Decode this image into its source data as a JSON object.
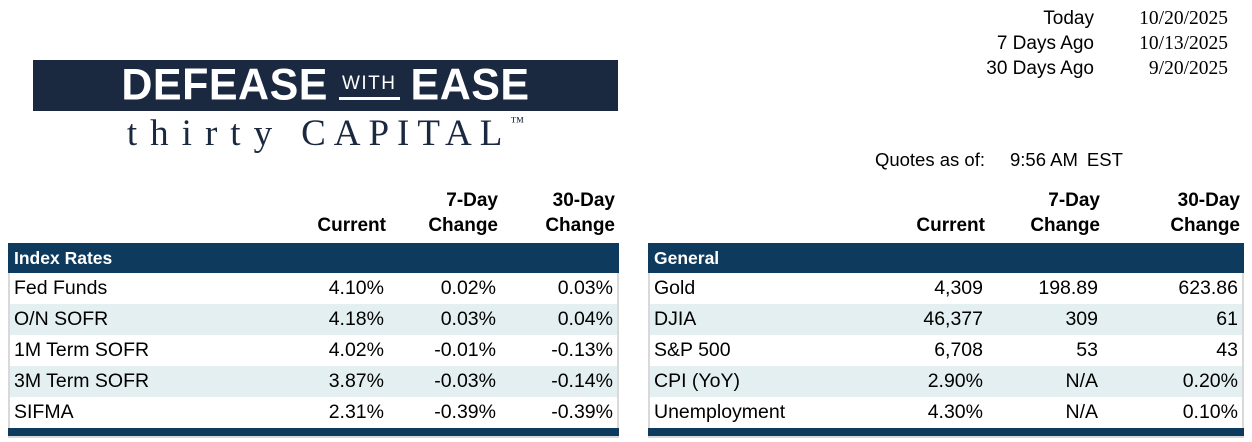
{
  "dates": {
    "rows": [
      {
        "label": "Today",
        "value": "10/20/2025"
      },
      {
        "label": "7 Days Ago",
        "value": "10/13/2025"
      },
      {
        "label": "30 Days Ago",
        "value": "9/20/2025"
      }
    ]
  },
  "logo": {
    "word1": "DEFEASE",
    "word2": "WITH",
    "word3": "EASE",
    "tagline_word1": "thirty",
    "tagline_word2": "CAPITAL",
    "trademark": "™"
  },
  "quotes": {
    "label": "Quotes as of:",
    "time": "9:56 AM",
    "timezone": "EST"
  },
  "columns": {
    "current": "Current",
    "seven_day": "7-Day",
    "thirty_day": "30-Day",
    "change": "Change"
  },
  "left_table": {
    "section": "Index Rates",
    "rows": [
      {
        "label": "Fed Funds",
        "current": "4.10%",
        "d7": "0.02%",
        "d30": "0.03%"
      },
      {
        "label": "O/N SOFR",
        "current": "4.18%",
        "d7": "0.03%",
        "d30": "0.04%"
      },
      {
        "label": "1M Term SOFR",
        "current": "4.02%",
        "d7": "-0.01%",
        "d30": "-0.13%"
      },
      {
        "label": "3M Term SOFR",
        "current": "3.87%",
        "d7": "-0.03%",
        "d30": "-0.14%"
      },
      {
        "label": "SIFMA",
        "current": "2.31%",
        "d7": "-0.39%",
        "d30": "-0.39%"
      }
    ]
  },
  "right_table": {
    "section": "General",
    "rows": [
      {
        "label": "Gold",
        "current": "4,309",
        "d7": "198.89",
        "d30": "623.86"
      },
      {
        "label": "DJIA",
        "current": "46,377",
        "d7": "309",
        "d30": "61"
      },
      {
        "label": "S&P 500",
        "current": "6,708",
        "d7": "53",
        "d30": "43"
      },
      {
        "label": "CPI (YoY)",
        "current": "2.90%",
        "d7": "N/A",
        "d30": "0.20%"
      },
      {
        "label": "Unemployment",
        "current": "4.30%",
        "d7": "N/A",
        "d30": "0.10%"
      }
    ]
  },
  "colors": {
    "logo_navy": "#1A2840",
    "bar_navy": "#0D3A5D",
    "row_band": "#E4EFF1",
    "border_gray": "#D9D9D9"
  }
}
